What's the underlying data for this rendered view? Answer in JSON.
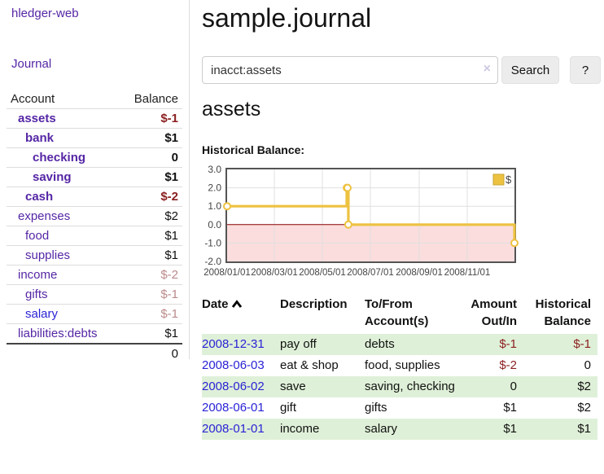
{
  "brand": "hledger-web",
  "nav": {
    "journal": "Journal"
  },
  "sidebar": {
    "columns": {
      "account": "Account",
      "balance": "Balance"
    },
    "accounts": [
      {
        "name": "assets",
        "balance": "$-1"
      },
      {
        "name": "bank",
        "balance": "$1"
      },
      {
        "name": "checking",
        "balance": "0"
      },
      {
        "name": "saving",
        "balance": "$1"
      },
      {
        "name": "cash",
        "balance": "$-2"
      },
      {
        "name": "expenses",
        "balance": "$2"
      },
      {
        "name": "food",
        "balance": "$1"
      },
      {
        "name": "supplies",
        "balance": "$1"
      },
      {
        "name": "income",
        "balance": "$-2"
      },
      {
        "name": "gifts",
        "balance": "$-1"
      },
      {
        "name": "salary",
        "balance": "$-1"
      },
      {
        "name": "liabilities:debts",
        "balance": "$1"
      }
    ],
    "total": "0"
  },
  "main": {
    "title": "sample.journal",
    "search": {
      "value": "inacct:assets",
      "clear": "×",
      "submit": "Search",
      "help": "?"
    },
    "account_title": "assets",
    "chart_heading": "Historical Balance:"
  },
  "chart_data": {
    "type": "line",
    "style": "step",
    "title": "Historical Balance",
    "series": [
      {
        "name": "$",
        "color": "#edc240",
        "points": [
          {
            "x": "2008-01-01",
            "y": 1
          },
          {
            "x": "2008-06-01",
            "y": 2
          },
          {
            "x": "2008-06-02",
            "y": 2
          },
          {
            "x": "2008-06-03",
            "y": 0
          },
          {
            "x": "2008-12-31",
            "y": -1
          }
        ]
      }
    ],
    "x_start": "2008-01-01",
    "x_end": "2008-12-31",
    "x_tick_dates": [
      "2008-01-01",
      "2008-03-01",
      "2008-05-01",
      "2008-07-01",
      "2008-09-01",
      "2008-11-01"
    ],
    "x_tick_labels": [
      "2008/01/01",
      "2008/03/01",
      "2008/05/01",
      "2008/07/01",
      "2008/09/01",
      "2008/11/01"
    ],
    "y_ticks": [
      "3.0",
      "2.0",
      "1.0",
      "0.0",
      "-1.0",
      "-2.0"
    ],
    "y_min": -2,
    "y_max": 3,
    "grid": true,
    "legend_position": "top-right",
    "zero_line_color": "#8b0000",
    "negative_region_fill": "#fbdddd",
    "border_color": "#545454",
    "grid_color": "#e0e0e0"
  },
  "register": {
    "columns": {
      "date": "Date",
      "description": "Description",
      "accounts": "To/From Account(s)",
      "amount": "Amount Out/In",
      "balance": "Historical Balance"
    },
    "rows": [
      {
        "date": "2008-12-31",
        "description": "pay off",
        "accounts": "debts",
        "amount": "$-1",
        "balance": "$-1"
      },
      {
        "date": "2008-06-03",
        "description": "eat & shop",
        "accounts": "food, supplies",
        "amount": "$-2",
        "balance": "0"
      },
      {
        "date": "2008-06-02",
        "description": "save",
        "accounts": "saving, checking",
        "amount": "0",
        "balance": "$2"
      },
      {
        "date": "2008-06-01",
        "description": "gift",
        "accounts": "gifts",
        "amount": "$1",
        "balance": "$2"
      },
      {
        "date": "2008-01-01",
        "description": "income",
        "accounts": "salary",
        "amount": "$1",
        "balance": "$1"
      }
    ]
  },
  "colors": {
    "link_purple": "#5526a5",
    "link_blue": "#2a23d6",
    "negative_strong": "#8b1f1f",
    "negative_dim": "#bb8a8a",
    "row_stripe_green": "#dff0d8",
    "series_gold": "#edc240"
  }
}
